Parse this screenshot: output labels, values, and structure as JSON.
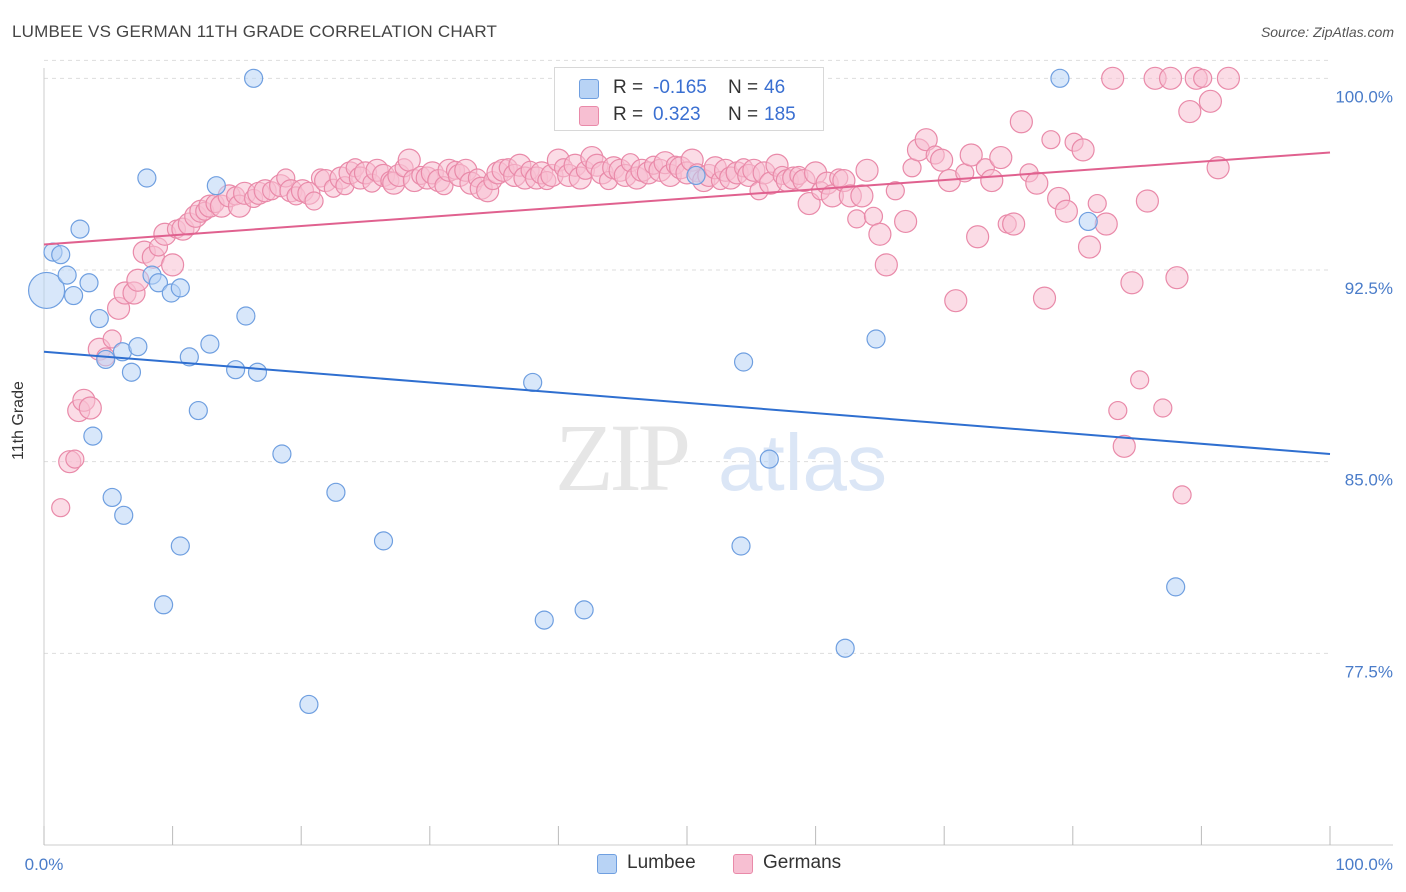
{
  "title": "LUMBEE VS GERMAN 11TH GRADE CORRELATION CHART",
  "source": "Source: ZipAtlas.com",
  "watermark": {
    "zip": "ZIP",
    "atlas": "atlas"
  },
  "colors": {
    "lumbee_fill": "#b8d3f5",
    "lumbee_stroke": "#6f9fe0",
    "lumbee_line": "#2f6fd0",
    "germans_fill": "#f7bfd2",
    "germans_stroke": "#e98aa9",
    "germans_line": "#e0618f",
    "tick_text": "#4a7cc9",
    "grid": "#dddddd"
  },
  "legend": {
    "rows": [
      {
        "r_label": "R =",
        "r_value": "-0.165",
        "n_label": "N =",
        "n_value": "46"
      },
      {
        "r_label": "R =",
        "r_value": "0.323",
        "n_label": "N =",
        "n_value": "185"
      }
    ]
  },
  "bottom_legend": [
    "Lumbee",
    "Germans"
  ],
  "chart_data": {
    "type": "scatter",
    "title": "LUMBEE VS GERMAN 11TH GRADE CORRELATION CHART",
    "xlabel": "",
    "ylabel": "11th Grade",
    "xlim": [
      0,
      100
    ],
    "ylim": [
      70.0,
      101.5
    ],
    "x_tick_labels": [
      "0.0%",
      "100.0%"
    ],
    "y_ticks": [
      77.5,
      85.0,
      92.5,
      100.0
    ],
    "y_tick_labels": [
      "77.5%",
      "85.0%",
      "92.5%",
      "100.0%"
    ],
    "grid": true,
    "legend_position": "top-center",
    "series": [
      {
        "name": "Lumbee",
        "trend": {
          "x": [
            0,
            100
          ],
          "y": [
            89.3,
            85.3
          ]
        },
        "points": [
          [
            0.2,
            91.7,
            18
          ],
          [
            0.7,
            93.2,
            9
          ],
          [
            1.3,
            93.1,
            9
          ],
          [
            1.8,
            92.3,
            9
          ],
          [
            2.3,
            91.5,
            9
          ],
          [
            2.8,
            94.1,
            9
          ],
          [
            3.5,
            92.0,
            9
          ],
          [
            3.8,
            86.0,
            9
          ],
          [
            4.3,
            90.6,
            9
          ],
          [
            4.8,
            89.0,
            9
          ],
          [
            5.3,
            83.6,
            9
          ],
          [
            6.1,
            89.3,
            9
          ],
          [
            6.2,
            82.9,
            9
          ],
          [
            6.8,
            88.5,
            9
          ],
          [
            7.3,
            89.5,
            9
          ],
          [
            8.0,
            96.1,
            9
          ],
          [
            8.4,
            92.3,
            9
          ],
          [
            8.9,
            92.0,
            9
          ],
          [
            9.3,
            79.4,
            9
          ],
          [
            9.9,
            91.6,
            9
          ],
          [
            10.6,
            81.7,
            9
          ],
          [
            10.6,
            91.8,
            9
          ],
          [
            11.3,
            89.1,
            9
          ],
          [
            12.0,
            87.0,
            9
          ],
          [
            12.9,
            89.6,
            9
          ],
          [
            13.4,
            95.8,
            9
          ],
          [
            14.9,
            88.6,
            9
          ],
          [
            15.7,
            90.7,
            9
          ],
          [
            16.3,
            100.0,
            9
          ],
          [
            16.6,
            88.5,
            9
          ],
          [
            18.5,
            85.3,
            9
          ],
          [
            20.6,
            75.5,
            9
          ],
          [
            22.7,
            83.8,
            9
          ],
          [
            26.4,
            81.9,
            9
          ],
          [
            38.0,
            88.1,
            9
          ],
          [
            38.9,
            78.8,
            9
          ],
          [
            42.0,
            79.2,
            9
          ],
          [
            50.7,
            96.2,
            9
          ],
          [
            54.2,
            81.7,
            9
          ],
          [
            54.4,
            88.9,
            9
          ],
          [
            56.4,
            85.1,
            9
          ],
          [
            62.3,
            77.7,
            9
          ],
          [
            64.7,
            89.8,
            9
          ],
          [
            79.0,
            100.0,
            9
          ],
          [
            81.2,
            94.4,
            9
          ],
          [
            88.0,
            80.1,
            9
          ]
        ]
      },
      {
        "name": "Germans",
        "trend": {
          "x": [
            0,
            100
          ],
          "y": [
            93.5,
            97.1
          ]
        },
        "points": [
          [
            1.3,
            83.2,
            9
          ],
          [
            2.0,
            85.0,
            11
          ],
          [
            2.4,
            85.1,
            9
          ],
          [
            2.7,
            87.0,
            11
          ],
          [
            3.1,
            87.4,
            11
          ],
          [
            3.6,
            87.1,
            11
          ],
          [
            4.3,
            89.4,
            11
          ],
          [
            4.8,
            89.1,
            9
          ],
          [
            5.3,
            89.8,
            9
          ],
          [
            5.8,
            91.0,
            11
          ],
          [
            6.3,
            91.6,
            11
          ],
          [
            7.0,
            91.6,
            11
          ],
          [
            7.3,
            92.1,
            11
          ],
          [
            7.8,
            93.2,
            11
          ],
          [
            8.5,
            93.0,
            11
          ],
          [
            8.9,
            93.4,
            9
          ],
          [
            9.4,
            93.9,
            11
          ],
          [
            10.0,
            92.7,
            11
          ],
          [
            10.3,
            94.1,
            9
          ],
          [
            10.8,
            94.1,
            11
          ],
          [
            11.3,
            94.3,
            11
          ],
          [
            11.8,
            94.6,
            11
          ],
          [
            12.2,
            94.8,
            11
          ],
          [
            12.5,
            94.8,
            9
          ],
          [
            12.9,
            95.0,
            11
          ],
          [
            13.3,
            95.1,
            9
          ],
          [
            13.8,
            95.0,
            11
          ],
          [
            14.4,
            95.4,
            11
          ],
          [
            14.9,
            95.4,
            9
          ],
          [
            15.2,
            95.0,
            11
          ],
          [
            15.6,
            95.5,
            11
          ],
          [
            16.3,
            95.3,
            9
          ],
          [
            16.7,
            95.5,
            11
          ],
          [
            17.2,
            95.6,
            11
          ],
          [
            17.7,
            95.6,
            9
          ],
          [
            18.4,
            95.8,
            11
          ],
          [
            18.8,
            96.1,
            9
          ],
          [
            19.2,
            95.6,
            11
          ],
          [
            19.6,
            95.4,
            9
          ],
          [
            20.1,
            95.6,
            11
          ],
          [
            20.6,
            95.5,
            11
          ],
          [
            21.0,
            95.2,
            9
          ],
          [
            21.5,
            96.1,
            9
          ],
          [
            21.9,
            96.0,
            11
          ],
          [
            22.5,
            95.7,
            9
          ],
          [
            23.1,
            96.1,
            11
          ],
          [
            23.4,
            95.8,
            9
          ],
          [
            23.8,
            96.3,
            11
          ],
          [
            24.2,
            96.5,
            9
          ],
          [
            24.6,
            96.1,
            11
          ],
          [
            25.0,
            96.3,
            11
          ],
          [
            25.5,
            95.9,
            9
          ],
          [
            25.9,
            96.4,
            11
          ],
          [
            26.4,
            96.2,
            11
          ],
          [
            26.9,
            96.0,
            9
          ],
          [
            27.2,
            95.9,
            11
          ],
          [
            27.6,
            96.2,
            11
          ],
          [
            28.0,
            96.5,
            9
          ],
          [
            28.4,
            96.8,
            11
          ],
          [
            28.8,
            96.0,
            11
          ],
          [
            29.3,
            96.2,
            9
          ],
          [
            29.8,
            96.1,
            11
          ],
          [
            30.2,
            96.3,
            11
          ],
          [
            30.7,
            96.0,
            11
          ],
          [
            31.1,
            95.8,
            9
          ],
          [
            31.5,
            96.4,
            11
          ],
          [
            32.0,
            96.4,
            9
          ],
          [
            32.3,
            96.2,
            11
          ],
          [
            32.8,
            96.4,
            11
          ],
          [
            33.2,
            95.9,
            11
          ],
          [
            33.7,
            96.1,
            9
          ],
          [
            34.0,
            95.7,
            11
          ],
          [
            34.5,
            95.6,
            11
          ],
          [
            34.9,
            96.0,
            9
          ],
          [
            35.3,
            96.3,
            11
          ],
          [
            35.7,
            96.4,
            11
          ],
          [
            36.1,
            96.5,
            9
          ],
          [
            36.6,
            96.2,
            11
          ],
          [
            37.0,
            96.6,
            11
          ],
          [
            37.4,
            96.1,
            11
          ],
          [
            37.8,
            96.4,
            9
          ],
          [
            38.3,
            96.1,
            11
          ],
          [
            38.7,
            96.3,
            11
          ],
          [
            39.1,
            96.0,
            9
          ],
          [
            39.5,
            96.2,
            11
          ],
          [
            40.0,
            96.8,
            11
          ],
          [
            40.4,
            96.5,
            9
          ],
          [
            40.8,
            96.2,
            11
          ],
          [
            41.3,
            96.6,
            11
          ],
          [
            41.7,
            96.1,
            11
          ],
          [
            42.1,
            96.4,
            9
          ],
          [
            42.6,
            96.9,
            11
          ],
          [
            43.0,
            96.6,
            11
          ],
          [
            43.4,
            96.3,
            11
          ],
          [
            43.9,
            96.0,
            9
          ],
          [
            44.3,
            96.5,
            11
          ],
          [
            44.8,
            96.4,
            11
          ],
          [
            45.2,
            96.2,
            11
          ],
          [
            45.6,
            96.7,
            9
          ],
          [
            46.1,
            96.1,
            11
          ],
          [
            46.5,
            96.4,
            11
          ],
          [
            47.0,
            96.3,
            11
          ],
          [
            47.4,
            96.6,
            9
          ],
          [
            47.9,
            96.4,
            11
          ],
          [
            48.3,
            96.7,
            11
          ],
          [
            48.7,
            96.2,
            11
          ],
          [
            49.1,
            96.6,
            9
          ],
          [
            49.5,
            96.5,
            11
          ],
          [
            50.0,
            96.3,
            11
          ],
          [
            50.4,
            96.8,
            11
          ],
          [
            50.8,
            96.3,
            9
          ],
          [
            51.3,
            96.0,
            11
          ],
          [
            51.7,
            96.2,
            11
          ],
          [
            52.2,
            96.5,
            11
          ],
          [
            52.6,
            96.0,
            9
          ],
          [
            53.0,
            96.4,
            11
          ],
          [
            53.4,
            96.1,
            11
          ],
          [
            53.9,
            96.3,
            11
          ],
          [
            54.4,
            96.5,
            9
          ],
          [
            54.8,
            96.2,
            11
          ],
          [
            55.2,
            96.4,
            11
          ],
          [
            55.6,
            95.6,
            9
          ],
          [
            56.0,
            96.3,
            11
          ],
          [
            56.5,
            95.9,
            11
          ],
          [
            57.0,
            96.6,
            11
          ],
          [
            57.4,
            96.2,
            9
          ],
          [
            57.8,
            96.0,
            11
          ],
          [
            58.3,
            96.1,
            11
          ],
          [
            58.7,
            96.2,
            9
          ],
          [
            59.1,
            96.0,
            11
          ],
          [
            59.5,
            95.1,
            11
          ],
          [
            60.0,
            96.3,
            11
          ],
          [
            60.4,
            95.6,
            9
          ],
          [
            60.9,
            95.9,
            11
          ],
          [
            61.3,
            95.4,
            11
          ],
          [
            61.8,
            96.1,
            9
          ],
          [
            62.2,
            96.0,
            11
          ],
          [
            62.7,
            95.4,
            11
          ],
          [
            63.2,
            94.5,
            9
          ],
          [
            63.6,
            95.4,
            11
          ],
          [
            64.0,
            96.4,
            11
          ],
          [
            64.5,
            94.6,
            9
          ],
          [
            65.0,
            93.9,
            11
          ],
          [
            65.5,
            92.7,
            11
          ],
          [
            66.2,
            95.6,
            9
          ],
          [
            67.0,
            94.4,
            11
          ],
          [
            67.5,
            96.5,
            9
          ],
          [
            68.0,
            97.2,
            11
          ],
          [
            68.6,
            97.6,
            11
          ],
          [
            69.3,
            97.0,
            9
          ],
          [
            69.8,
            96.8,
            11
          ],
          [
            70.4,
            96.0,
            11
          ],
          [
            70.9,
            91.3,
            11
          ],
          [
            71.6,
            96.3,
            9
          ],
          [
            72.1,
            97.0,
            11
          ],
          [
            72.6,
            93.8,
            11
          ],
          [
            73.2,
            96.5,
            9
          ],
          [
            73.7,
            96.0,
            11
          ],
          [
            74.4,
            96.9,
            11
          ],
          [
            74.9,
            94.3,
            9
          ],
          [
            75.4,
            94.3,
            11
          ],
          [
            76.0,
            98.3,
            11
          ],
          [
            76.6,
            96.3,
            9
          ],
          [
            77.2,
            95.9,
            11
          ],
          [
            77.8,
            91.4,
            11
          ],
          [
            78.3,
            97.6,
            9
          ],
          [
            78.9,
            95.3,
            11
          ],
          [
            79.5,
            94.8,
            11
          ],
          [
            80.1,
            97.5,
            9
          ],
          [
            80.8,
            97.2,
            11
          ],
          [
            81.3,
            93.4,
            11
          ],
          [
            81.9,
            95.1,
            9
          ],
          [
            82.6,
            94.3,
            11
          ],
          [
            83.1,
            100.0,
            11
          ],
          [
            83.5,
            87.0,
            9
          ],
          [
            84.0,
            85.6,
            11
          ],
          [
            84.6,
            92.0,
            11
          ],
          [
            85.2,
            88.2,
            9
          ],
          [
            85.8,
            95.2,
            11
          ],
          [
            86.4,
            100.0,
            11
          ],
          [
            87.0,
            87.1,
            9
          ],
          [
            87.6,
            100.0,
            11
          ],
          [
            88.1,
            92.2,
            11
          ],
          [
            88.5,
            83.7,
            9
          ],
          [
            89.1,
            98.7,
            11
          ],
          [
            89.6,
            100.0,
            11
          ],
          [
            90.1,
            100.0,
            9
          ],
          [
            90.7,
            99.1,
            11
          ],
          [
            91.3,
            96.5,
            11
          ],
          [
            92.1,
            100.0,
            11
          ]
        ]
      }
    ]
  }
}
